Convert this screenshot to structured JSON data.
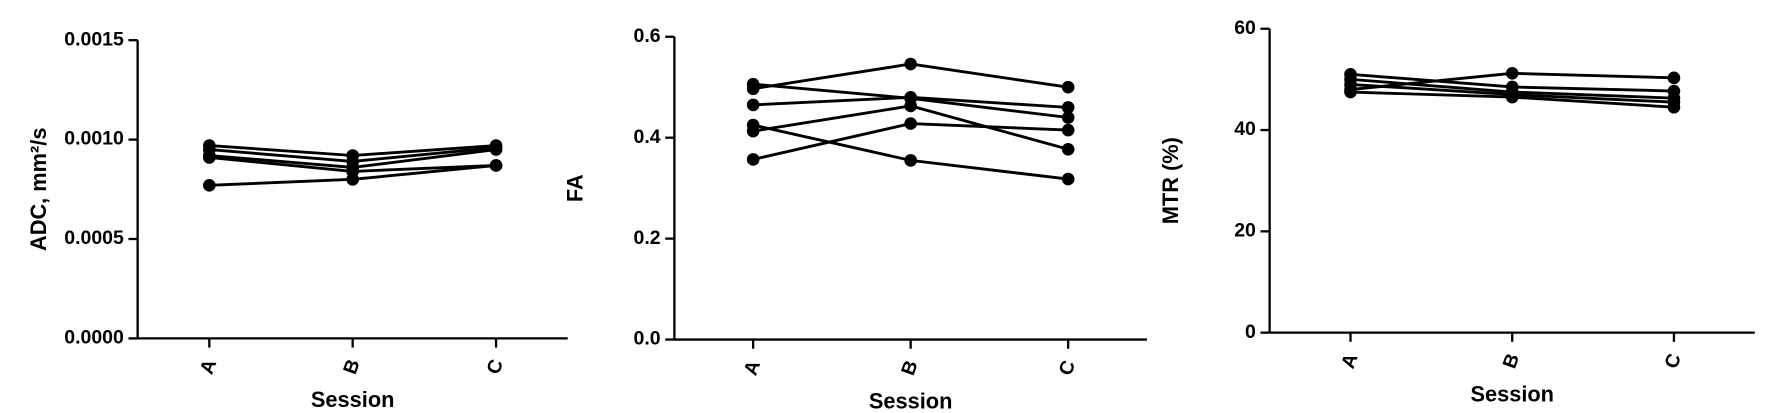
{
  "chart_data": [
    {
      "type": "line",
      "y_label": "ADC, mm²/s",
      "x_label": "Session",
      "categories": [
        "A",
        "B",
        "C"
      ],
      "series": [
        {
          "color": "#000000",
          "values": [
            0.00097,
            0.00092,
            0.00097
          ]
        },
        {
          "color": "#000000",
          "values": [
            0.00095,
            0.00089,
            0.00096
          ]
        },
        {
          "color": "#000000",
          "values": [
            0.00092,
            0.00086,
            0.00095
          ]
        },
        {
          "color": "#000000",
          "values": [
            0.00091,
            0.00084,
            0.00087
          ]
        },
        {
          "color": "#000000",
          "values": [
            0.00077,
            0.0008,
            0.00087
          ]
        }
      ],
      "ylim": [
        0,
        0.0015
      ],
      "yticks": [
        {
          "value": 0,
          "label": "0.0000"
        },
        {
          "value": 0.0005,
          "label": "0.0005"
        },
        {
          "value": 0.001,
          "label": "0.0010"
        },
        {
          "value": 0.0015,
          "label": "0.0015"
        }
      ]
    },
    {
      "type": "line",
      "y_label": "FA",
      "x_label": "Session",
      "categories": [
        "A",
        "B",
        "C"
      ],
      "series": [
        {
          "color": "#000000",
          "values": [
            0.497,
            0.546,
            0.5
          ]
        },
        {
          "color": "#000000",
          "values": [
            0.506,
            0.478,
            0.44
          ]
        },
        {
          "color": "#000000",
          "values": [
            0.465,
            0.48,
            0.46
          ]
        },
        {
          "color": "#000000",
          "values": [
            0.413,
            0.463,
            0.377
          ]
        },
        {
          "color": "#000000",
          "values": [
            0.425,
            0.355,
            0.318
          ]
        },
        {
          "color": "#000000",
          "values": [
            0.357,
            0.428,
            0.415
          ]
        }
      ],
      "ylim": [
        0,
        0.6
      ],
      "yticks": [
        {
          "value": 0,
          "label": "0.0"
        },
        0.2,
        0.4,
        0.6
      ]
    },
    {
      "type": "line",
      "y_label": "MTR (%)",
      "x_label": "Session",
      "categories": [
        "A",
        "B",
        "C"
      ],
      "series": [
        {
          "color": "#000000",
          "values": [
            48,
            51.2,
            50.3
          ]
        },
        {
          "color": "#000000",
          "values": [
            51,
            48.5,
            47.7
          ]
        },
        {
          "color": "#000000",
          "values": [
            50,
            47.5,
            46.3
          ]
        },
        {
          "color": "#000000",
          "values": [
            49,
            47,
            45.5
          ]
        },
        {
          "color": "#000000",
          "values": [
            47.5,
            46.5,
            44.5
          ]
        }
      ],
      "ylim": [
        0,
        60
      ],
      "yticks": [
        0,
        20,
        40,
        60
      ]
    }
  ]
}
